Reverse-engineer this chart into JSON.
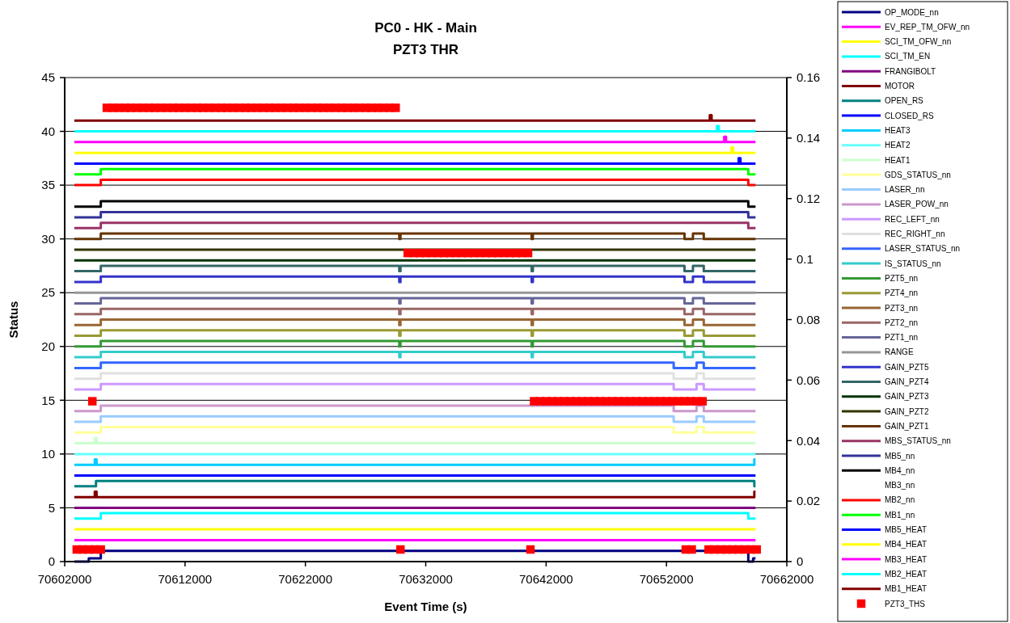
{
  "chart_data": {
    "type": "step",
    "title": "PC0 - HK - Main",
    "subtitle": "PZT3 THR",
    "xlabel": "Event Time (s)",
    "ylabel": "Status",
    "xlim": [
      70602000,
      70662000
    ],
    "xticks": [
      70602000,
      70612000,
      70622000,
      70632000,
      70642000,
      70652000,
      70662000
    ],
    "ylim": [
      0,
      45
    ],
    "yticks": [
      0,
      5,
      10,
      15,
      20,
      25,
      30,
      35,
      40,
      45
    ],
    "y2lim": [
      0,
      0.16
    ],
    "y2ticks": [
      0,
      0.02,
      0.04,
      0.06,
      0.08,
      0.1,
      0.12,
      0.14,
      0.16
    ],
    "grid": "y",
    "legend": "right",
    "series": [
      {
        "name": "OP_MODE_nn",
        "color": "#000080",
        "x": [
          70602800,
          70604000,
          70605000,
          70658800,
          70659200,
          70659400
        ],
        "values": [
          0,
          0.3,
          1,
          0,
          0.3,
          0.3
        ]
      },
      {
        "name": "EV_REP_TM_OFW_nn",
        "color": "#ff00ff",
        "x": [
          70602800,
          70659400
        ],
        "values": [
          2,
          2
        ]
      },
      {
        "name": "SCI_TM_OFW_nn",
        "color": "#ffff00",
        "x": [
          70602800,
          70659400
        ],
        "values": [
          3,
          3
        ]
      },
      {
        "name": "SCI_TM_EN",
        "color": "#00ffff",
        "x": [
          70602800,
          70605000,
          70658800,
          70659400
        ],
        "values": [
          4,
          4.5,
          4,
          4
        ]
      },
      {
        "name": "FRANGIBOLT",
        "color": "#800080",
        "x": [
          70602800,
          70659400
        ],
        "values": [
          5,
          5
        ]
      },
      {
        "name": "MOTOR",
        "color": "#800000",
        "x": [
          70602800,
          70604500,
          70604650,
          70659300,
          70659400
        ],
        "values": [
          6,
          6.5,
          6,
          6.5,
          6.5
        ]
      },
      {
        "name": "OPEN_RS",
        "color": "#008080",
        "x": [
          70602800,
          70604600,
          70659300,
          70659400
        ],
        "values": [
          7,
          7.5,
          7,
          7
        ]
      },
      {
        "name": "CLOSED_RS",
        "color": "#0000ff",
        "x": [
          70602800,
          70659400
        ],
        "values": [
          8,
          8
        ]
      },
      {
        "name": "HEAT3",
        "color": "#00ccff",
        "x": [
          70602800,
          70604500,
          70604650,
          70659300,
          70659400
        ],
        "values": [
          9,
          9.5,
          9,
          9.5,
          9.5
        ]
      },
      {
        "name": "HEAT2",
        "color": "#66ffff",
        "x": [
          70602800,
          70659400
        ],
        "values": [
          10,
          10
        ]
      },
      {
        "name": "HEAT1",
        "color": "#ccffcc",
        "x": [
          70602800,
          70604500,
          70604650,
          70659400
        ],
        "values": [
          11,
          11.5,
          11,
          11
        ]
      },
      {
        "name": "GDS_STATUS_nn",
        "color": "#ffff99",
        "x": [
          70602800,
          70605000,
          70652600,
          70654500,
          70655100,
          70659400
        ],
        "values": [
          12,
          12.5,
          12,
          12.5,
          12,
          12
        ]
      },
      {
        "name": "LASER_nn",
        "color": "#99ccff",
        "x": [
          70602800,
          70605000,
          70652600,
          70654500,
          70655100,
          70659400
        ],
        "values": [
          13,
          13.5,
          13,
          13.5,
          13,
          13
        ]
      },
      {
        "name": "LASER_POW_nn",
        "color": "#cc99cc",
        "x": [
          70602800,
          70605000,
          70652600,
          70654500,
          70655100,
          70659400
        ],
        "values": [
          14,
          14.5,
          14,
          14.5,
          14,
          14
        ]
      },
      {
        "name": "REC_LEFT_nn",
        "color": "#cc99ff",
        "x": [
          70602800,
          70605000,
          70652600,
          70654500,
          70655100,
          70659400
        ],
        "values": [
          16,
          16.5,
          16,
          16.5,
          16,
          16
        ]
      },
      {
        "name": "REC_RIGHT_nn",
        "color": "#e0e0e0",
        "x": [
          70602800,
          70605000,
          70652600,
          70654500,
          70655100,
          70659400
        ],
        "values": [
          17,
          17.5,
          17,
          17.5,
          17,
          17
        ]
      },
      {
        "name": "LASER_STATUS_nn",
        "color": "#3366ff",
        "x": [
          70602800,
          70605000,
          70652600,
          70654500,
          70655100,
          70659400
        ],
        "values": [
          18,
          18.5,
          18,
          18.5,
          18,
          18
        ]
      },
      {
        "name": "IS_STATUS_nn",
        "color": "#33cccc",
        "x": [
          70602800,
          70605000,
          70629800,
          70629900,
          70640800,
          70640900,
          70653500,
          70654200,
          70655100,
          70659400
        ],
        "values": [
          19,
          19.5,
          19,
          19.5,
          19,
          19.5,
          19,
          19.5,
          19,
          19
        ]
      },
      {
        "name": "PZT5_nn",
        "color": "#339933",
        "x": [
          70602800,
          70605000,
          70629800,
          70629900,
          70640800,
          70640900,
          70653500,
          70654200,
          70655100,
          70659400
        ],
        "values": [
          20,
          20.5,
          20,
          20.5,
          20,
          20.5,
          20,
          20.5,
          20,
          20
        ]
      },
      {
        "name": "PZT4_nn",
        "color": "#999933",
        "x": [
          70602800,
          70605000,
          70629800,
          70629900,
          70640800,
          70640900,
          70653500,
          70654200,
          70655100,
          70659400
        ],
        "values": [
          21,
          21.5,
          21,
          21.5,
          21,
          21.5,
          21,
          21.5,
          21,
          21
        ]
      },
      {
        "name": "PZT3_nn",
        "color": "#996633",
        "x": [
          70602800,
          70605000,
          70629800,
          70629900,
          70640800,
          70640900,
          70653500,
          70654200,
          70655100,
          70659400
        ],
        "values": [
          22,
          22.5,
          22,
          22.5,
          22,
          22.5,
          22,
          22.5,
          22,
          22
        ]
      },
      {
        "name": "PZT2_nn",
        "color": "#996666",
        "x": [
          70602800,
          70605000,
          70629800,
          70629900,
          70640800,
          70640900,
          70653500,
          70654200,
          70655100,
          70659400
        ],
        "values": [
          23,
          23.5,
          23,
          23.5,
          23,
          23.5,
          23,
          23.5,
          23,
          23
        ]
      },
      {
        "name": "PZT1_nn",
        "color": "#666699",
        "x": [
          70602800,
          70605000,
          70629800,
          70629900,
          70640800,
          70640900,
          70653500,
          70654200,
          70655100,
          70659400
        ],
        "values": [
          24,
          24.5,
          24,
          24.5,
          24,
          24.5,
          24,
          24.5,
          24,
          24
        ]
      },
      {
        "name": "RANGE",
        "color": "#969696",
        "x": [
          70602800,
          70659400
        ],
        "values": [
          25,
          25
        ]
      },
      {
        "name": "GAIN_PZT5",
        "color": "#3333cc",
        "x": [
          70602800,
          70605000,
          70629800,
          70629900,
          70640800,
          70640900,
          70653500,
          70654200,
          70655100,
          70659400
        ],
        "values": [
          26,
          26.5,
          26,
          26.5,
          26,
          26.5,
          26,
          26.5,
          26,
          26
        ]
      },
      {
        "name": "GAIN_PZT4",
        "color": "#336666",
        "x": [
          70602800,
          70605000,
          70629800,
          70629900,
          70640800,
          70640900,
          70653500,
          70654200,
          70655100,
          70659400
        ],
        "values": [
          27,
          27.5,
          27,
          27.5,
          27,
          27.5,
          27,
          27.5,
          27,
          27
        ]
      },
      {
        "name": "GAIN_PZT3",
        "color": "#003300",
        "x": [
          70602800,
          70659400
        ],
        "values": [
          28,
          28
        ]
      },
      {
        "name": "GAIN_PZT2",
        "color": "#333300",
        "x": [
          70602800,
          70659400
        ],
        "values": [
          29,
          29
        ]
      },
      {
        "name": "GAIN_PZT1",
        "color": "#663300",
        "x": [
          70602800,
          70605000,
          70629800,
          70629900,
          70640800,
          70640900,
          70653500,
          70654200,
          70655100,
          70659400
        ],
        "values": [
          30,
          30.5,
          30,
          30.5,
          30,
          30.5,
          30,
          30.5,
          30,
          30
        ]
      },
      {
        "name": "MBS_STATUS_nn",
        "color": "#993366",
        "x": [
          70602800,
          70605000,
          70658800,
          70659400
        ],
        "values": [
          31,
          31.5,
          31,
          31
        ]
      },
      {
        "name": "MB5_nn",
        "color": "#333399",
        "x": [
          70602800,
          70605000,
          70658800,
          70659400
        ],
        "values": [
          32,
          32.5,
          32,
          32
        ]
      },
      {
        "name": "MB4_nn",
        "color": "#000000",
        "x": [
          70602800,
          70605000,
          70658800,
          70659400
        ],
        "values": [
          33,
          33.5,
          33,
          33
        ]
      },
      {
        "name": "MB3_nn"
      },
      {
        "name": "MB2_nn",
        "color": "#ff0000",
        "x": [
          70602800,
          70605000,
          70658800,
          70659400
        ],
        "values": [
          35,
          35.5,
          35,
          35
        ]
      },
      {
        "name": "MB1_nn",
        "color": "#00ff00",
        "x": [
          70602800,
          70605000,
          70658800,
          70659400
        ],
        "values": [
          36,
          36.5,
          36,
          36
        ]
      },
      {
        "name": "MB5_HEAT",
        "color": "#0000ff",
        "x": [
          70602800,
          70658000,
          70658150,
          70659400
        ],
        "values": [
          37,
          37.5,
          37,
          37
        ]
      },
      {
        "name": "MB4_HEAT",
        "color": "#ffff00",
        "x": [
          70602800,
          70657400,
          70657550,
          70659400
        ],
        "values": [
          38,
          38.5,
          38,
          38
        ]
      },
      {
        "name": "MB3_HEAT",
        "color": "#ff00ff",
        "x": [
          70602800,
          70656800,
          70656950,
          70659400
        ],
        "values": [
          39,
          39.5,
          39,
          39
        ]
      },
      {
        "name": "MB2_HEAT",
        "color": "#00ffff",
        "x": [
          70602800,
          70656200,
          70656350,
          70659400
        ],
        "values": [
          40,
          40.5,
          40,
          40
        ]
      },
      {
        "name": "MB1_HEAT",
        "color": "#800000",
        "x": [
          70602800,
          70655600,
          70655750,
          70659400
        ],
        "values": [
          41,
          41.5,
          41,
          41
        ]
      },
      {
        "name": "PZT3_THS",
        "color": "#ff0000",
        "type": "scatter",
        "axis": "y2",
        "marker": "square",
        "x": [
          70605500,
          70606000,
          70606500,
          70607000,
          70607500,
          70608000,
          70608500,
          70609000,
          70609500,
          70610000,
          70610500,
          70611000,
          70611500,
          70612000,
          70612500,
          70613000,
          70613500,
          70614000,
          70614500,
          70615000,
          70615500,
          70616000,
          70616500,
          70617000,
          70617500,
          70618000,
          70618500,
          70619000,
          70619500,
          70620000,
          70620500,
          70621000,
          70621500,
          70622000,
          70622500,
          70623000,
          70623500,
          70624000,
          70624500,
          70625000,
          70625500,
          70626000,
          70626500,
          70627000,
          70627500,
          70628000,
          70628500,
          70629000,
          70629500,
          70630500,
          70631000,
          70631500,
          70632000,
          70632500,
          70633000,
          70633500,
          70634000,
          70634500,
          70635000,
          70635500,
          70636000,
          70636500,
          70637000,
          70637500,
          70638000,
          70638500,
          70639000,
          70639500,
          70640000,
          70640500,
          70604300,
          70641000,
          70641500,
          70642000,
          70642500,
          70643000,
          70643500,
          70644000,
          70644500,
          70645000,
          70645500,
          70646000,
          70646500,
          70647000,
          70647500,
          70648000,
          70648500,
          70649000,
          70649500,
          70650000,
          70650500,
          70651000,
          70651500,
          70652000,
          70652500,
          70653000,
          70653500,
          70654000,
          70654500,
          70655000,
          70603000,
          70603500,
          70604000,
          70604500,
          70605000,
          70629900,
          70640700,
          70653600,
          70654100,
          70655500,
          70656000,
          70656500,
          70657000,
          70657500,
          70658000,
          70658500,
          70659000,
          70659500
        ],
        "values": [
          0.15,
          0.15,
          0.15,
          0.15,
          0.15,
          0.15,
          0.15,
          0.15,
          0.15,
          0.15,
          0.15,
          0.15,
          0.15,
          0.15,
          0.15,
          0.15,
          0.15,
          0.15,
          0.15,
          0.15,
          0.15,
          0.15,
          0.15,
          0.15,
          0.15,
          0.15,
          0.15,
          0.15,
          0.15,
          0.15,
          0.15,
          0.15,
          0.15,
          0.15,
          0.15,
          0.15,
          0.15,
          0.15,
          0.15,
          0.15,
          0.15,
          0.15,
          0.15,
          0.15,
          0.15,
          0.15,
          0.15,
          0.15,
          0.15,
          0.102,
          0.102,
          0.102,
          0.102,
          0.102,
          0.102,
          0.102,
          0.102,
          0.102,
          0.102,
          0.102,
          0.102,
          0.102,
          0.102,
          0.102,
          0.102,
          0.102,
          0.102,
          0.102,
          0.102,
          0.102,
          0.053,
          0.053,
          0.053,
          0.053,
          0.053,
          0.053,
          0.053,
          0.053,
          0.053,
          0.053,
          0.053,
          0.053,
          0.053,
          0.053,
          0.053,
          0.053,
          0.053,
          0.053,
          0.053,
          0.053,
          0.053,
          0.053,
          0.053,
          0.053,
          0.053,
          0.053,
          0.053,
          0.053,
          0.053,
          0.053,
          0.004,
          0.004,
          0.004,
          0.004,
          0.004,
          0.004,
          0.004,
          0.004,
          0.004,
          0.004,
          0.004,
          0.004,
          0.004,
          0.004,
          0.004,
          0.004,
          0.004,
          0.004
        ]
      }
    ]
  }
}
